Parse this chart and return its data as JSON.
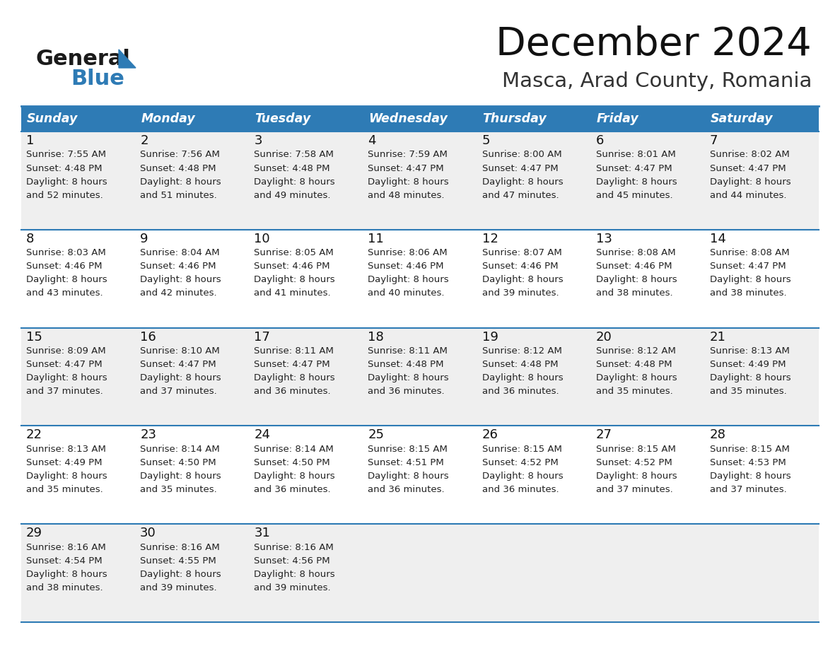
{
  "title": "December 2024",
  "subtitle": "Masca, Arad County, Romania",
  "header_color": "#2E7BB5",
  "header_text_color": "#FFFFFF",
  "days_of_week": [
    "Sunday",
    "Monday",
    "Tuesday",
    "Wednesday",
    "Thursday",
    "Friday",
    "Saturday"
  ],
  "background_color": "#FFFFFF",
  "cell_bg_even": "#EFEFEF",
  "cell_bg_odd": "#FFFFFF",
  "logo_color": "#2E7BB5",
  "days": [
    {
      "day": 1,
      "col": 0,
      "row": 0,
      "sunrise": "7:55 AM",
      "sunset": "4:48 PM",
      "daylight": "8 hours and 52 minutes."
    },
    {
      "day": 2,
      "col": 1,
      "row": 0,
      "sunrise": "7:56 AM",
      "sunset": "4:48 PM",
      "daylight": "8 hours and 51 minutes."
    },
    {
      "day": 3,
      "col": 2,
      "row": 0,
      "sunrise": "7:58 AM",
      "sunset": "4:48 PM",
      "daylight": "8 hours and 49 minutes."
    },
    {
      "day": 4,
      "col": 3,
      "row": 0,
      "sunrise": "7:59 AM",
      "sunset": "4:47 PM",
      "daylight": "8 hours and 48 minutes."
    },
    {
      "day": 5,
      "col": 4,
      "row": 0,
      "sunrise": "8:00 AM",
      "sunset": "4:47 PM",
      "daylight": "8 hours and 47 minutes."
    },
    {
      "day": 6,
      "col": 5,
      "row": 0,
      "sunrise": "8:01 AM",
      "sunset": "4:47 PM",
      "daylight": "8 hours and 45 minutes."
    },
    {
      "day": 7,
      "col": 6,
      "row": 0,
      "sunrise": "8:02 AM",
      "sunset": "4:47 PM",
      "daylight": "8 hours and 44 minutes."
    },
    {
      "day": 8,
      "col": 0,
      "row": 1,
      "sunrise": "8:03 AM",
      "sunset": "4:46 PM",
      "daylight": "8 hours and 43 minutes."
    },
    {
      "day": 9,
      "col": 1,
      "row": 1,
      "sunrise": "8:04 AM",
      "sunset": "4:46 PM",
      "daylight": "8 hours and 42 minutes."
    },
    {
      "day": 10,
      "col": 2,
      "row": 1,
      "sunrise": "8:05 AM",
      "sunset": "4:46 PM",
      "daylight": "8 hours and 41 minutes."
    },
    {
      "day": 11,
      "col": 3,
      "row": 1,
      "sunrise": "8:06 AM",
      "sunset": "4:46 PM",
      "daylight": "8 hours and 40 minutes."
    },
    {
      "day": 12,
      "col": 4,
      "row": 1,
      "sunrise": "8:07 AM",
      "sunset": "4:46 PM",
      "daylight": "8 hours and 39 minutes."
    },
    {
      "day": 13,
      "col": 5,
      "row": 1,
      "sunrise": "8:08 AM",
      "sunset": "4:46 PM",
      "daylight": "8 hours and 38 minutes."
    },
    {
      "day": 14,
      "col": 6,
      "row": 1,
      "sunrise": "8:08 AM",
      "sunset": "4:47 PM",
      "daylight": "8 hours and 38 minutes."
    },
    {
      "day": 15,
      "col": 0,
      "row": 2,
      "sunrise": "8:09 AM",
      "sunset": "4:47 PM",
      "daylight": "8 hours and 37 minutes."
    },
    {
      "day": 16,
      "col": 1,
      "row": 2,
      "sunrise": "8:10 AM",
      "sunset": "4:47 PM",
      "daylight": "8 hours and 37 minutes."
    },
    {
      "day": 17,
      "col": 2,
      "row": 2,
      "sunrise": "8:11 AM",
      "sunset": "4:47 PM",
      "daylight": "8 hours and 36 minutes."
    },
    {
      "day": 18,
      "col": 3,
      "row": 2,
      "sunrise": "8:11 AM",
      "sunset": "4:48 PM",
      "daylight": "8 hours and 36 minutes."
    },
    {
      "day": 19,
      "col": 4,
      "row": 2,
      "sunrise": "8:12 AM",
      "sunset": "4:48 PM",
      "daylight": "8 hours and 36 minutes."
    },
    {
      "day": 20,
      "col": 5,
      "row": 2,
      "sunrise": "8:12 AM",
      "sunset": "4:48 PM",
      "daylight": "8 hours and 35 minutes."
    },
    {
      "day": 21,
      "col": 6,
      "row": 2,
      "sunrise": "8:13 AM",
      "sunset": "4:49 PM",
      "daylight": "8 hours and 35 minutes."
    },
    {
      "day": 22,
      "col": 0,
      "row": 3,
      "sunrise": "8:13 AM",
      "sunset": "4:49 PM",
      "daylight": "8 hours and 35 minutes."
    },
    {
      "day": 23,
      "col": 1,
      "row": 3,
      "sunrise": "8:14 AM",
      "sunset": "4:50 PM",
      "daylight": "8 hours and 35 minutes."
    },
    {
      "day": 24,
      "col": 2,
      "row": 3,
      "sunrise": "8:14 AM",
      "sunset": "4:50 PM",
      "daylight": "8 hours and 36 minutes."
    },
    {
      "day": 25,
      "col": 3,
      "row": 3,
      "sunrise": "8:15 AM",
      "sunset": "4:51 PM",
      "daylight": "8 hours and 36 minutes."
    },
    {
      "day": 26,
      "col": 4,
      "row": 3,
      "sunrise": "8:15 AM",
      "sunset": "4:52 PM",
      "daylight": "8 hours and 36 minutes."
    },
    {
      "day": 27,
      "col": 5,
      "row": 3,
      "sunrise": "8:15 AM",
      "sunset": "4:52 PM",
      "daylight": "8 hours and 37 minutes."
    },
    {
      "day": 28,
      "col": 6,
      "row": 3,
      "sunrise": "8:15 AM",
      "sunset": "4:53 PM",
      "daylight": "8 hours and 37 minutes."
    },
    {
      "day": 29,
      "col": 0,
      "row": 4,
      "sunrise": "8:16 AM",
      "sunset": "4:54 PM",
      "daylight": "8 hours and 38 minutes."
    },
    {
      "day": 30,
      "col": 1,
      "row": 4,
      "sunrise": "8:16 AM",
      "sunset": "4:55 PM",
      "daylight": "8 hours and 39 minutes."
    },
    {
      "day": 31,
      "col": 2,
      "row": 4,
      "sunrise": "8:16 AM",
      "sunset": "4:56 PM",
      "daylight": "8 hours and 39 minutes."
    }
  ]
}
